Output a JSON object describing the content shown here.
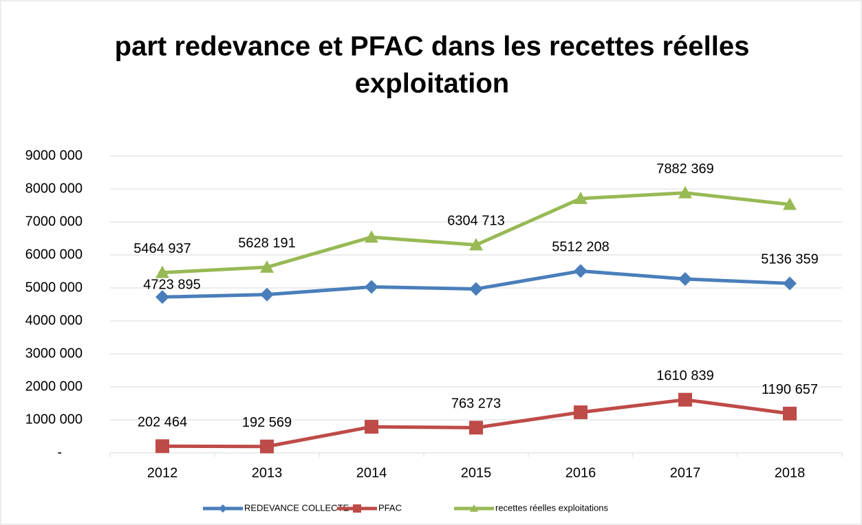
{
  "chart_data": {
    "type": "line",
    "title": [
      "part redevance et PFAC dans les recettes  réelles",
      "exploitation"
    ],
    "categories": [
      "2012",
      "2013",
      "2014",
      "2015",
      "2016",
      "2017",
      "2018"
    ],
    "series": [
      {
        "name": "REDEVANCE COLLECTE",
        "color": "#4a7ebb",
        "marker": "diamond",
        "values": [
          4723895,
          4800000,
          5030000,
          4970000,
          5512208,
          5270000,
          5136359
        ],
        "value_labels": [
          "4723 895",
          null,
          null,
          null,
          "5512 208",
          null,
          "5136 359"
        ]
      },
      {
        "name": "PFAC",
        "color": "#be4b48",
        "marker": "square",
        "values": [
          202464,
          192569,
          790000,
          763273,
          1230000,
          1610839,
          1190657
        ],
        "value_labels": [
          "202 464",
          "192 569",
          null,
          "763 273",
          null,
          "1610 839",
          "1190 657"
        ]
      },
      {
        "name": "recettes  réelles exploitations",
        "color": "#98b954",
        "marker": "triangle",
        "values": [
          5464937,
          5628191,
          6540000,
          6304713,
          7710000,
          7882369,
          7530000
        ],
        "value_labels": [
          "5464 937",
          "5628 191",
          null,
          "6304 713",
          null,
          "7882 369",
          null
        ]
      }
    ],
    "ylim": [
      0,
      9000000
    ],
    "yticks": [
      {
        "value": 0,
        "label": "-"
      },
      {
        "value": 1000000,
        "label": "1000 000"
      },
      {
        "value": 2000000,
        "label": "2000 000"
      },
      {
        "value": 3000000,
        "label": "3000 000"
      },
      {
        "value": 4000000,
        "label": "4000 000"
      },
      {
        "value": 5000000,
        "label": "5000 000"
      },
      {
        "value": 6000000,
        "label": "6000 000"
      },
      {
        "value": 7000000,
        "label": "7000 000"
      },
      {
        "value": 8000000,
        "label": "8000 000"
      },
      {
        "value": 9000000,
        "label": "9000 000"
      }
    ],
    "grid": true,
    "legend": "bottom"
  }
}
